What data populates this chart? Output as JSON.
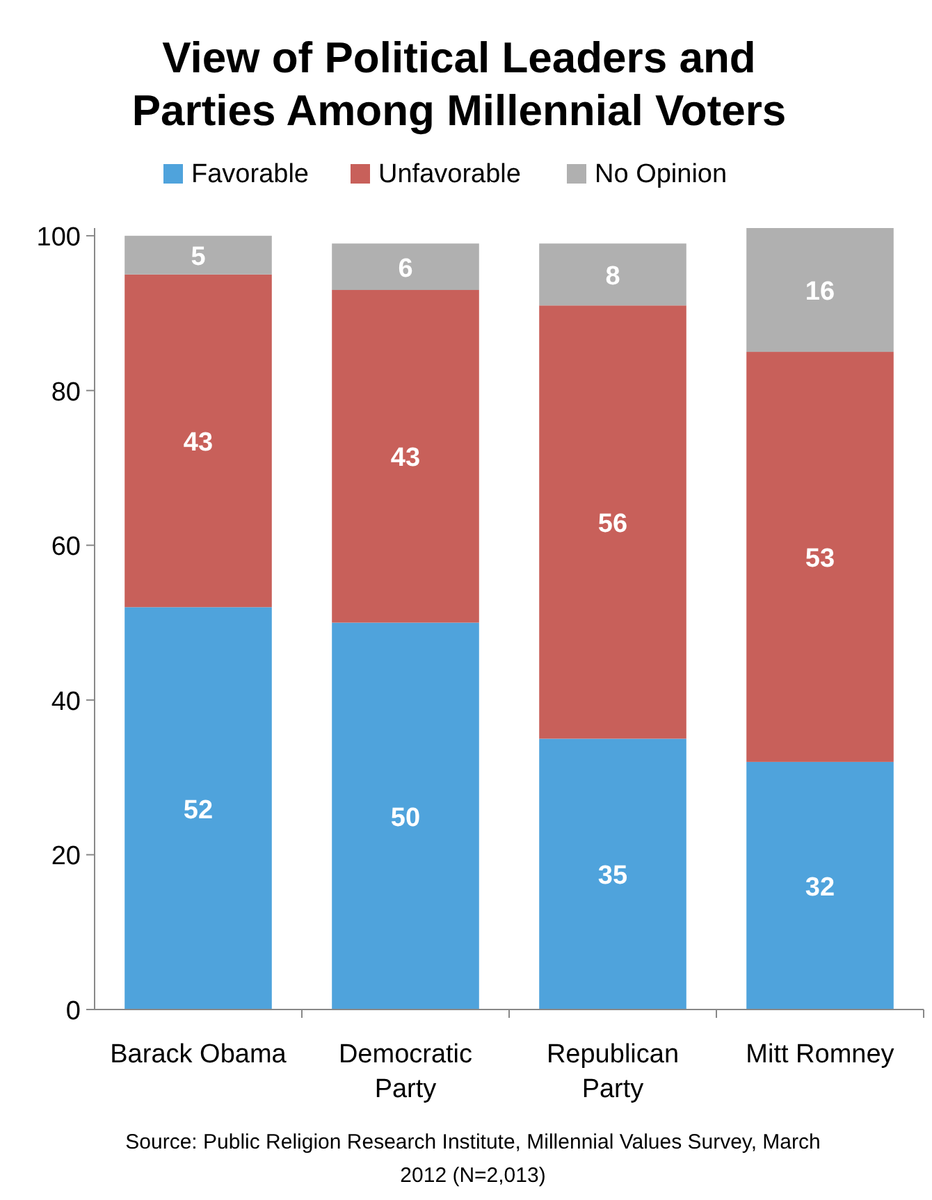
{
  "chart_data": {
    "type": "bar",
    "title": "View of Political Leaders and Parties Among Millennial Voters",
    "categories": [
      "Barack Obama",
      "Democratic Party",
      "Republican Party",
      "Mitt Romney"
    ],
    "stacked": true,
    "series": [
      {
        "name": "Favorable",
        "color": "#4fa3dc",
        "values": [
          52,
          50,
          35,
          32
        ]
      },
      {
        "name": "Unfavorable",
        "color": "#c8605a",
        "values": [
          43,
          43,
          56,
          53
        ]
      },
      {
        "name": "No Opinion",
        "color": "#b0b0b0",
        "values": [
          5,
          6,
          8,
          16
        ]
      }
    ],
    "ylim": [
      0,
      101
    ],
    "yticks": [
      0,
      20,
      40,
      60,
      80,
      100
    ],
    "grid": false,
    "legend": "top",
    "data_labels": true,
    "annotations": [
      "Source: Public Religion Research Institute, Millennial Values Survey, March 2012 (N=2,013)"
    ]
  }
}
